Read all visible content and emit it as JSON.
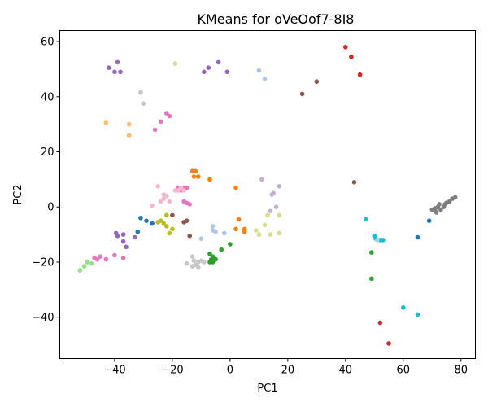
{
  "chart_data": {
    "type": "scatter",
    "title": "KMeans for oVeOof7-8I8",
    "xlabel": "PC1",
    "ylabel": "PC2",
    "xlim": [
      -59,
      85
    ],
    "ylim": [
      -55,
      64
    ],
    "xticks": [
      -40,
      -20,
      0,
      20,
      40,
      60,
      80
    ],
    "yticks": [
      -40,
      -20,
      0,
      20,
      40,
      60
    ],
    "grid": false,
    "legend": false,
    "series": [
      {
        "color": "#1f77b4",
        "points": [
          [
            -31,
            -4
          ],
          [
            -29,
            -5
          ],
          [
            -27,
            -6
          ],
          [
            -32,
            -9
          ],
          [
            69,
            -5
          ],
          [
            65,
            -11
          ]
        ]
      },
      {
        "color": "#ff7f0e",
        "points": [
          [
            -13,
            13
          ],
          [
            -12.5,
            11
          ],
          [
            -12,
            13
          ],
          [
            -11,
            11
          ],
          [
            -7,
            10
          ],
          [
            2,
            7
          ],
          [
            3,
            -4.5
          ],
          [
            2,
            -8
          ],
          [
            5,
            -8
          ],
          [
            5,
            -9
          ]
        ]
      },
      {
        "color": "#2ca02c",
        "points": [
          [
            -7,
            -17
          ],
          [
            -6,
            -18
          ],
          [
            -6.5,
            -19
          ],
          [
            -7,
            -20
          ],
          [
            -6,
            -20
          ],
          [
            -5,
            -19
          ],
          [
            -3,
            -15.5
          ],
          [
            0,
            -13.5
          ],
          [
            49,
            -16.5
          ],
          [
            49,
            -26
          ]
        ]
      },
      {
        "color": "#d62728",
        "points": [
          [
            40,
            58
          ],
          [
            42,
            54.5
          ],
          [
            45,
            48
          ],
          [
            52,
            -42
          ],
          [
            55,
            -49.5
          ]
        ]
      },
      {
        "color": "#9467bd",
        "points": [
          [
            -38,
            49
          ],
          [
            -42,
            50.5
          ],
          [
            -39,
            52.5
          ],
          [
            -40,
            49
          ],
          [
            -39.5,
            -9.5
          ],
          [
            -39,
            -10.5
          ],
          [
            -37,
            -10
          ],
          [
            -37,
            -12.5
          ],
          [
            -36,
            -14.5
          ],
          [
            -33,
            -11
          ],
          [
            -9,
            49
          ],
          [
            -7.5,
            50.5
          ],
          [
            -4,
            52.5
          ],
          [
            -1,
            49
          ]
        ]
      },
      {
        "color": "#8c564b",
        "points": [
          [
            25,
            41
          ],
          [
            30,
            45.5
          ],
          [
            43,
            9
          ],
          [
            -20,
            -3
          ],
          [
            -16,
            -5.5
          ],
          [
            -15,
            -5
          ],
          [
            -14,
            -10.5
          ]
        ]
      },
      {
        "color": "#e377c2",
        "points": [
          [
            -47,
            -18.5
          ],
          [
            -46,
            -19
          ],
          [
            -45,
            -18
          ],
          [
            -43,
            -19
          ],
          [
            -40,
            -17.5
          ],
          [
            -37,
            -18.5
          ],
          [
            -26,
            28
          ],
          [
            -24,
            31
          ],
          [
            -22,
            34
          ],
          [
            -21,
            33
          ],
          [
            -18,
            7
          ],
          [
            -17,
            6
          ],
          [
            -16,
            7
          ],
          [
            -15,
            7
          ],
          [
            -16,
            2
          ],
          [
            -15,
            1.5
          ],
          [
            -14,
            1
          ]
        ]
      },
      {
        "color": "#7f7f7f",
        "points": [
          [
            70,
            -1
          ],
          [
            71,
            -1
          ],
          [
            71.5,
            -2
          ],
          [
            72,
            0
          ],
          [
            72.5,
            1
          ],
          [
            73,
            -1
          ],
          [
            74,
            0
          ],
          [
            74.5,
            1
          ],
          [
            75,
            1.5
          ],
          [
            76,
            2
          ],
          [
            77,
            3
          ],
          [
            78,
            3.5
          ],
          [
            71,
            -0.5
          ]
        ]
      },
      {
        "color": "#bcbd22",
        "points": [
          [
            -25,
            -5.5
          ],
          [
            -24,
            -5
          ],
          [
            -23,
            -6
          ],
          [
            -22,
            -7
          ],
          [
            -21,
            -9.5
          ],
          [
            -20,
            -8
          ],
          [
            -22,
            -3
          ]
        ]
      },
      {
        "color": "#17becf",
        "points": [
          [
            47,
            -4.5
          ],
          [
            50,
            -10.5
          ],
          [
            50.5,
            -11.5
          ],
          [
            52,
            -12
          ],
          [
            53,
            -12
          ],
          [
            60,
            -36.5
          ],
          [
            65,
            -39
          ]
        ]
      },
      {
        "color": "#aec7e8",
        "points": [
          [
            10,
            49.5
          ],
          [
            12,
            46.5
          ],
          [
            -10,
            -11.5
          ],
          [
            -6,
            -7
          ],
          [
            -6,
            -8.5
          ],
          [
            -5,
            -9
          ],
          [
            -2,
            -9.5
          ]
        ]
      },
      {
        "color": "#ffbb78",
        "points": [
          [
            -43,
            30.5
          ],
          [
            -35,
            30
          ],
          [
            -35,
            26
          ]
        ]
      },
      {
        "color": "#98df8a",
        "points": [
          [
            -52,
            -23
          ],
          [
            -50.5,
            -21.5
          ],
          [
            -49.5,
            -20
          ],
          [
            -48,
            -20.5
          ]
        ]
      },
      {
        "color": "#ff9896",
        "points": []
      },
      {
        "color": "#c5b0d5",
        "points": [
          [
            11,
            10
          ],
          [
            14,
            -1.5
          ],
          [
            14.5,
            4.5
          ],
          [
            15,
            5
          ],
          [
            16,
            0
          ],
          [
            17,
            7.5
          ]
        ]
      },
      {
        "color": "#c49c94",
        "points": []
      },
      {
        "color": "#f7b6d2",
        "points": [
          [
            -25,
            7.5
          ],
          [
            -23,
            4.5
          ],
          [
            -22,
            4
          ],
          [
            -21,
            2
          ],
          [
            -24,
            2
          ],
          [
            -23,
            3
          ],
          [
            -27,
            0.5
          ],
          [
            -19,
            6
          ],
          [
            -18,
            6
          ],
          [
            -16,
            6
          ],
          [
            -17,
            7
          ]
        ]
      },
      {
        "color": "#c7c7c7",
        "points": [
          [
            -31,
            41.5
          ],
          [
            -30,
            37.5
          ],
          [
            -15,
            -20.5
          ],
          [
            -13,
            -18
          ],
          [
            -12.5,
            -19.5
          ],
          [
            -12,
            -21
          ],
          [
            -11,
            -20
          ],
          [
            -10,
            -19.5
          ],
          [
            -11,
            -22
          ],
          [
            -13,
            -21.5
          ],
          [
            -9,
            -20
          ]
        ]
      },
      {
        "color": "#dbdb8d",
        "points": [
          [
            -19,
            52
          ],
          [
            9,
            -8.5
          ],
          [
            10,
            -10
          ],
          [
            12,
            -6.5
          ],
          [
            13,
            -3
          ],
          [
            14,
            -10
          ],
          [
            17,
            -3
          ],
          [
            17,
            -9.5
          ]
        ]
      },
      {
        "color": "#9edae5",
        "points": [
          [
            51,
            -12
          ]
        ]
      }
    ]
  }
}
